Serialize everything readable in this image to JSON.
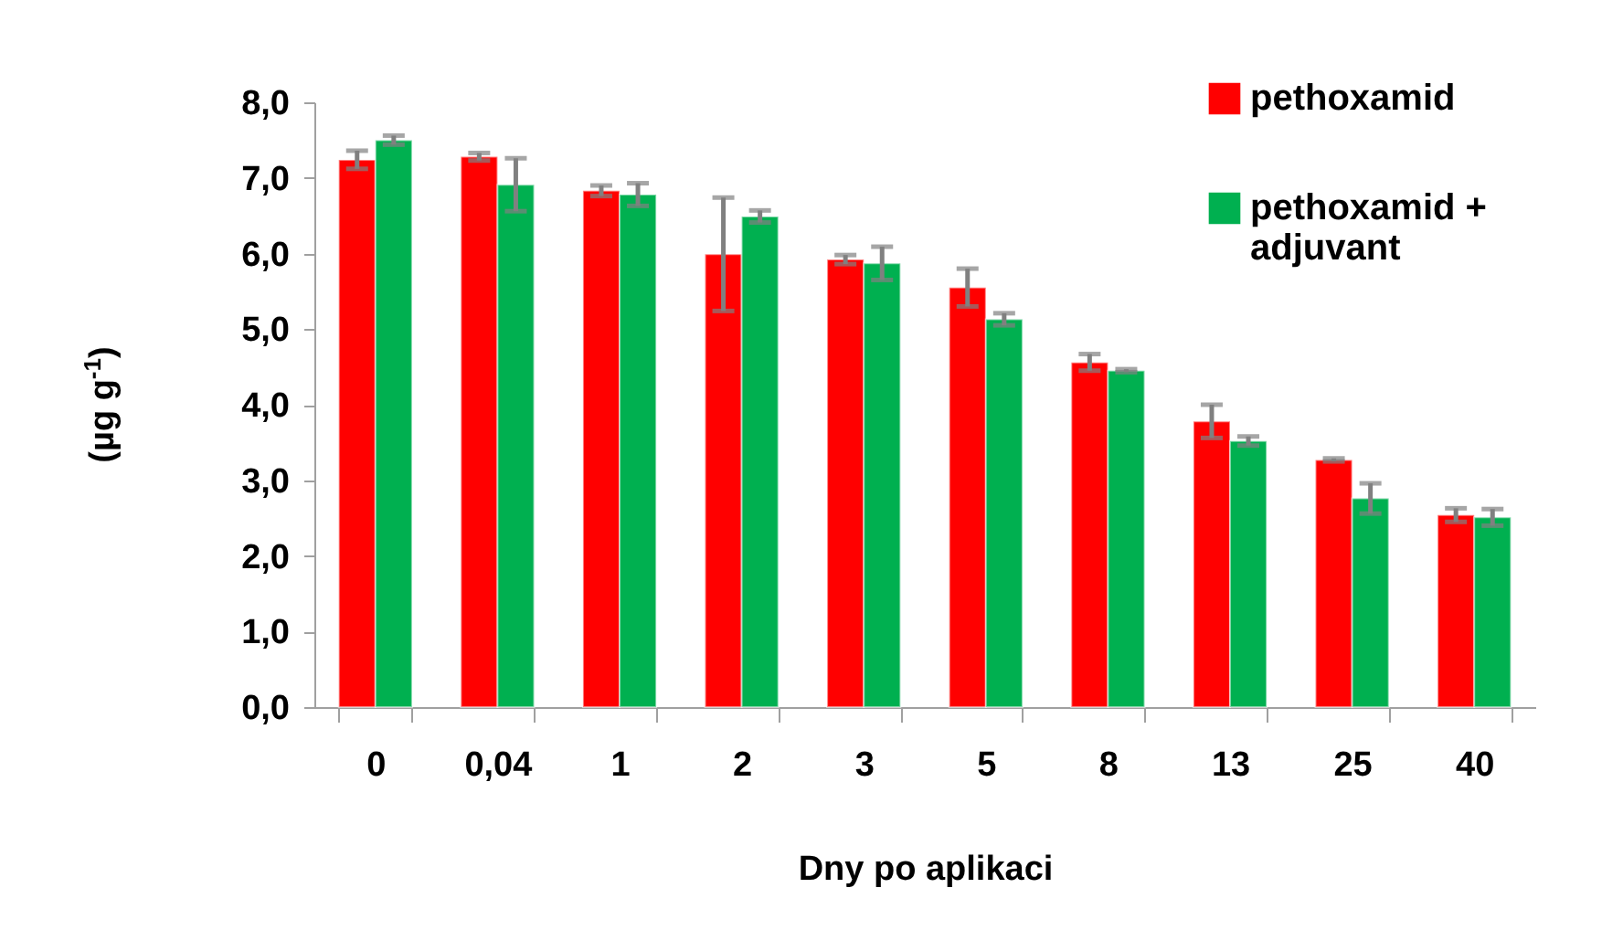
{
  "chart_data": {
    "type": "bar",
    "xlabel": "Dny po aplikaci",
    "ylabel": "(µg g$^{-1}$)",
    "categories": [
      "0",
      "0,04",
      "1",
      "2",
      "3",
      "5",
      "8",
      "13",
      "25",
      "40"
    ],
    "series": [
      {
        "name": "pethoxamid",
        "color": "#ff0000",
        "values": [
          7.24,
          7.28,
          6.83,
          5.99,
          5.92,
          5.55,
          4.56,
          3.78,
          3.27,
          2.54
        ],
        "errors": [
          0.12,
          0.05,
          0.07,
          0.75,
          0.06,
          0.25,
          0.11,
          0.22,
          0.02,
          0.09
        ]
      },
      {
        "name": "pethoxamid + adjuvant",
        "color": "#00b050",
        "values": [
          7.5,
          6.91,
          6.78,
          6.49,
          5.87,
          5.13,
          4.45,
          3.52,
          2.76,
          2.51
        ],
        "errors": [
          0.06,
          0.35,
          0.15,
          0.08,
          0.22,
          0.08,
          0.02,
          0.06,
          0.2,
          0.11
        ]
      }
    ],
    "ylim": [
      0,
      8
    ],
    "yticks": [
      {
        "value": 0,
        "label": "0,0"
      },
      {
        "value": 1,
        "label": "1,0"
      },
      {
        "value": 2,
        "label": "2,0"
      },
      {
        "value": 3,
        "label": "3,0"
      },
      {
        "value": 4,
        "label": "4,0"
      },
      {
        "value": 5,
        "label": "5,0"
      },
      {
        "value": 6,
        "label": "6,0"
      },
      {
        "value": 7,
        "label": "7,0"
      },
      {
        "value": 8,
        "label": "8,0"
      }
    ],
    "grid": false,
    "legend": "top right"
  }
}
